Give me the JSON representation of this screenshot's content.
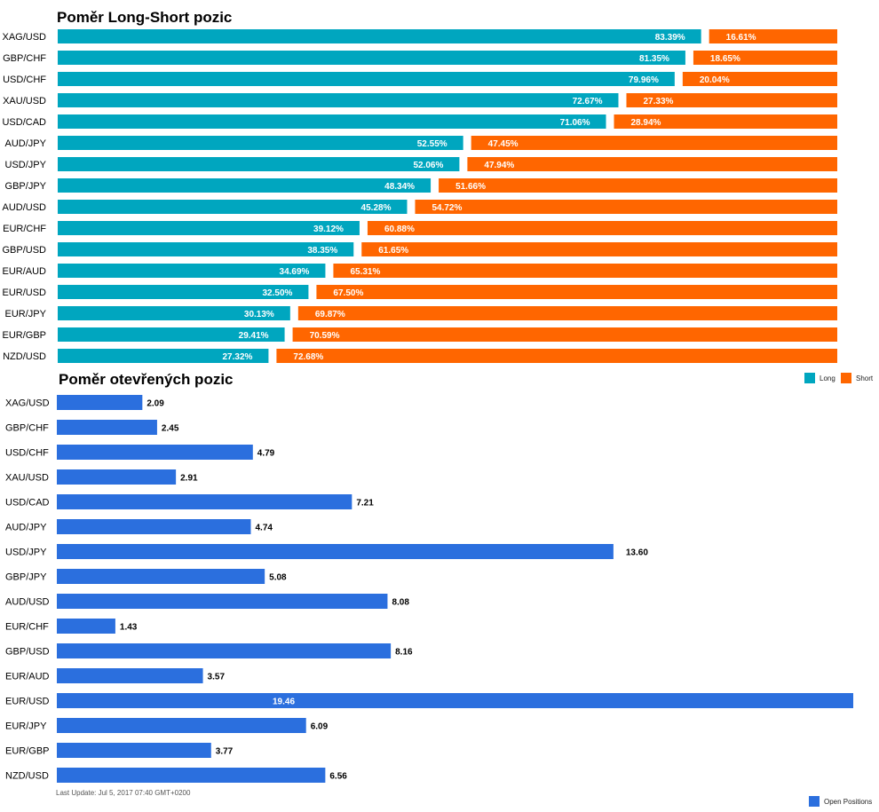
{
  "chart_data": [
    {
      "type": "bar",
      "orientation": "horizontal",
      "stacked": true,
      "stack_mode": "percent",
      "title": "Poměr Long-Short pozic",
      "categories": [
        "XAG/USD",
        "GBP/CHF",
        "USD/CHF",
        "XAU/USD",
        "USD/CAD",
        "AUD/JPY",
        "USD/JPY",
        "GBP/JPY",
        "AUD/USD",
        "EUR/CHF",
        "GBP/USD",
        "EUR/AUD",
        "EUR/USD",
        "EUR/JPY",
        "EUR/GBP",
        "NZD/USD"
      ],
      "series": [
        {
          "name": "Long",
          "color": "#00a6bf",
          "values": [
            83.39,
            81.35,
            79.96,
            72.67,
            71.06,
            52.55,
            52.06,
            48.34,
            45.28,
            39.12,
            38.35,
            34.69,
            32.5,
            30.13,
            29.41,
            27.32
          ],
          "labels": [
            "83.39%",
            "81.35%",
            "79.96%",
            "72.67%",
            "71.06%",
            "52.55%",
            "52.06%",
            "48.34%",
            "45.28%",
            "39.12%",
            "38.35%",
            "34.69%",
            "32.50%",
            "30.13%",
            "29.41%",
            "27.32%"
          ]
        },
        {
          "name": "Short",
          "color": "#ff6600",
          "values": [
            16.61,
            18.65,
            20.04,
            27.33,
            28.94,
            47.45,
            47.94,
            51.66,
            54.72,
            60.88,
            61.65,
            65.31,
            67.5,
            69.87,
            70.59,
            72.68
          ],
          "labels": [
            "16.61%",
            "18.65%",
            "20.04%",
            "27.33%",
            "28.94%",
            "47.45%",
            "47.94%",
            "51.66%",
            "54.72%",
            "60.88%",
            "61.65%",
            "65.31%",
            "67.50%",
            "69.87%",
            "70.59%",
            "72.68%"
          ]
        }
      ],
      "xlim": [
        0,
        100
      ],
      "grid": false,
      "legend": "bottom-right"
    },
    {
      "type": "bar",
      "orientation": "horizontal",
      "title": "Poměr otevřených pozic",
      "categories": [
        "XAG/USD",
        "GBP/CHF",
        "USD/CHF",
        "XAU/USD",
        "USD/CAD",
        "AUD/JPY",
        "USD/JPY",
        "GBP/JPY",
        "AUD/USD",
        "EUR/CHF",
        "GBP/USD",
        "EUR/AUD",
        "EUR/USD",
        "EUR/JPY",
        "EUR/GBP",
        "NZD/USD"
      ],
      "series": [
        {
          "name": "Open Positions",
          "color": "#2b6fde",
          "values": [
            2.09,
            2.45,
            4.79,
            2.91,
            7.21,
            4.74,
            13.6,
            5.08,
            8.08,
            1.43,
            8.16,
            3.57,
            19.46,
            6.09,
            3.77,
            6.56
          ],
          "labels": [
            "2.09",
            "2.45",
            "4.79",
            "2.91",
            "7.21",
            "4.74",
            "13.60",
            "5.08",
            "8.08",
            "1.43",
            "8.16",
            "3.57",
            "19.46",
            "6.09",
            "3.77",
            "6.56"
          ]
        }
      ],
      "xlim": [
        0,
        19.46
      ],
      "grid": false,
      "legend": "bottom-right",
      "footnote": "Last Update: Jul 5, 2017 07:40 GMT+0200"
    }
  ]
}
